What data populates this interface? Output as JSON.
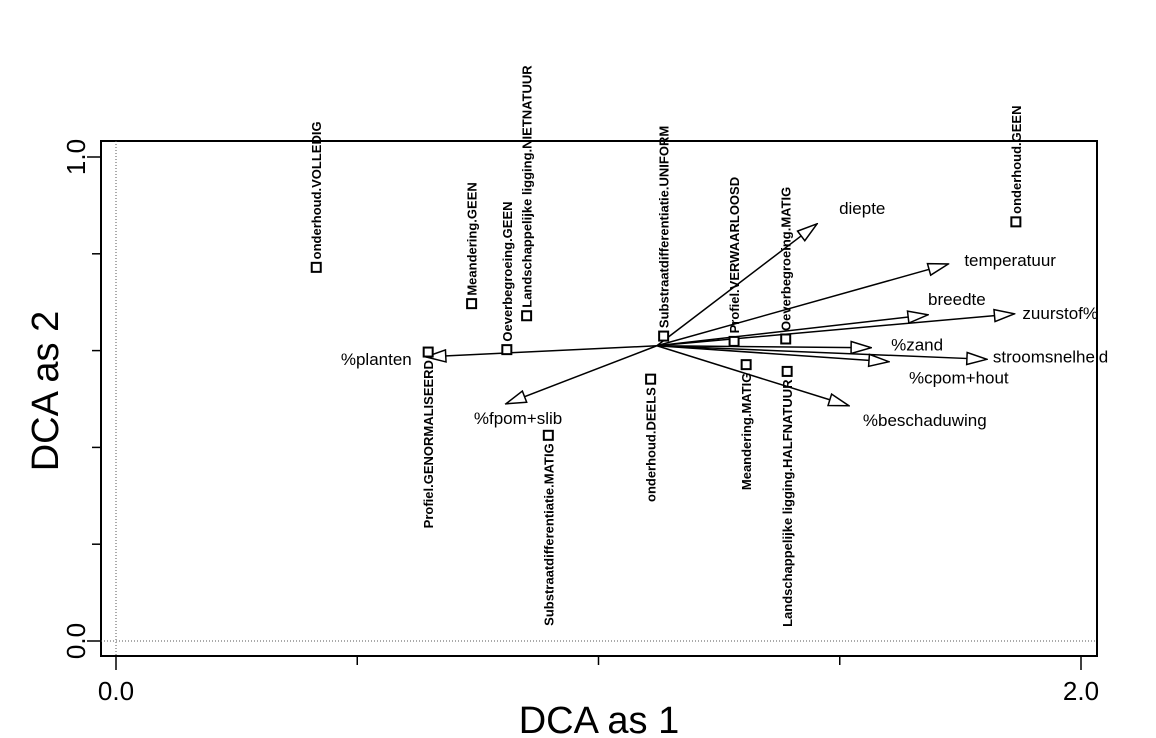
{
  "chart_data": {
    "type": "scatter",
    "xlabel": "DCA as 1",
    "ylabel": "DCA as 2",
    "xlim": [
      0.0,
      2.0
    ],
    "ylim": [
      0.0,
      1.0
    ],
    "x_ticks": [
      {
        "value": 0.0,
        "label": "0.0"
      },
      {
        "value": 2.0,
        "label": "2.0"
      }
    ],
    "y_ticks": [
      {
        "value": 0.0,
        "label": "0.0"
      },
      {
        "value": 1.0,
        "label": "1.0"
      }
    ],
    "origin": [
      1.121,
      0.61
    ],
    "grid": false,
    "vectors": [
      {
        "name": "diepte",
        "x": 1.453,
        "y": 0.862
      },
      {
        "name": "temperatuur",
        "x": 1.725,
        "y": 0.779
      },
      {
        "name": "breedte",
        "x": 1.683,
        "y": 0.674
      },
      {
        "name": "zuurstof%",
        "x": 1.862,
        "y": 0.676
      },
      {
        "name": "%zand",
        "x": 1.565,
        "y": 0.606
      },
      {
        "name": "stroomsnelheid",
        "x": 1.805,
        "y": 0.582
      },
      {
        "name": "%cpom+hout",
        "x": 1.602,
        "y": 0.577
      },
      {
        "name": "%beschaduwing",
        "x": 1.519,
        "y": 0.486
      },
      {
        "name": "%planten",
        "x": 0.642,
        "y": 0.587
      },
      {
        "name": "%fpom+slib",
        "x": 0.808,
        "y": 0.49
      }
    ],
    "points": [
      {
        "name": "onderhoud.VOLLEDIG",
        "x": 0.415,
        "y": 0.772
      },
      {
        "name": "Meandering.GEEN",
        "x": 0.737,
        "y": 0.697
      },
      {
        "name": "Oeverbegroeing.GEEN",
        "x": 0.81,
        "y": 0.602
      },
      {
        "name": "Landschappelijke ligging.NIETNATUUR",
        "x": 0.851,
        "y": 0.672
      },
      {
        "name": "Substraatdifferentiatie.UNIFORM",
        "x": 1.135,
        "y": 0.63
      },
      {
        "name": "Profiel.VERWAARLOOSD",
        "x": 1.281,
        "y": 0.619
      },
      {
        "name": "Oeverbegroeing.MATIG",
        "x": 1.388,
        "y": 0.624
      },
      {
        "name": "onderhoud.GEEN",
        "x": 1.865,
        "y": 0.866
      },
      {
        "name": "Profiel.GENORMALISEERD",
        "x": 0.647,
        "y": 0.597
      },
      {
        "name": "Substraatdifferentiatie.MATIG",
        "x": 0.896,
        "y": 0.425
      },
      {
        "name": "onderhoud.DEELS",
        "x": 1.108,
        "y": 0.541
      },
      {
        "name": "Meandering.MATIG",
        "x": 1.306,
        "y": 0.571
      },
      {
        "name": "Landschappelijke ligging.HALFNATUUR",
        "x": 1.391,
        "y": 0.557
      }
    ]
  }
}
